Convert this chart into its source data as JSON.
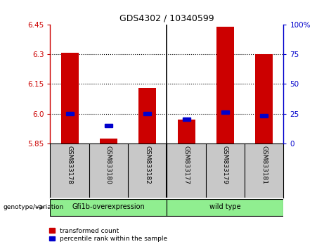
{
  "title": "GDS4302 / 10340599",
  "samples": [
    "GSM833178",
    "GSM833180",
    "GSM833182",
    "GSM833177",
    "GSM833179",
    "GSM833181"
  ],
  "red_values": [
    6.31,
    5.875,
    6.13,
    5.97,
    6.44,
    6.3
  ],
  "blue_values": [
    25,
    15,
    25,
    20,
    26,
    23
  ],
  "y_min": 5.85,
  "y_max": 6.45,
  "y_ticks_left": [
    5.85,
    6.0,
    6.15,
    6.3,
    6.45
  ],
  "y_ticks_right": [
    0,
    25,
    50,
    75,
    100
  ],
  "dotted_lines": [
    6.0,
    6.15,
    6.3
  ],
  "group1_label": "Gfi1b-overexpression",
  "group2_label": "wild type",
  "group_color": "#90EE90",
  "bar_color": "#CC0000",
  "dot_color": "#0000CC",
  "axis_color_left": "#CC0000",
  "axis_color_right": "#0000CC",
  "bg_xlabel": "#C8C8C8",
  "legend_red_label": "transformed count",
  "legend_blue_label": "percentile rank within the sample",
  "genotype_label": "genotype/variation"
}
